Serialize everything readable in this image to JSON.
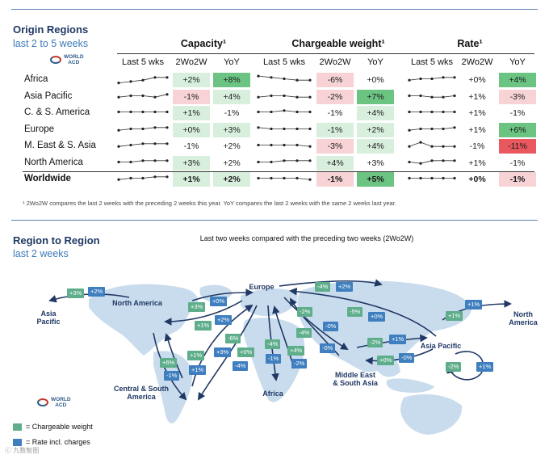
{
  "top": {
    "title": "Origin Regions",
    "subtitle": "last 2 to 5 weeks",
    "logo": {
      "line1": "WORLD",
      "line2": "ACD"
    },
    "groups": [
      "Capacity¹",
      "Chargeable weight¹",
      "Rate¹"
    ],
    "col_headers": [
      "Last 5 wks",
      "2Wo2W",
      "YoY"
    ]
  },
  "colors": {
    "green_strong": "#6cc483",
    "green_light": "#d8efdd",
    "red_strong": "#e8585e",
    "red_light": "#f7d3d5",
    "neutral": "#ffffff",
    "map": "#c9dced",
    "arrow": "#1f3864",
    "badge_green": "#5fae8b",
    "badge_blue": "#3f7fbf"
  },
  "chart_data": [
    {
      "type": "table",
      "title": "Origin Regions — last 2 to 5 weeks",
      "columns": [
        "Region",
        "Capacity Last 5 wks",
        "Capacity 2Wo2W",
        "Capacity YoY",
        "Chargeable weight Last 5 wks",
        "Chargeable weight 2Wo2W",
        "Chargeable weight YoY",
        "Rate Last 5 wks",
        "Rate 2Wo2W",
        "Rate YoY"
      ],
      "rows": [
        {
          "region": "Africa",
          "bold": false,
          "spark": [
            [
              2,
              3,
              4,
              6,
              6
            ],
            [
              7,
              6,
              5,
              4,
              4
            ],
            [
              4,
              5,
              5,
              6,
              6
            ]
          ],
          "values": [
            "+2%",
            "+8%",
            "-6%",
            "+0%",
            "+0%",
            "+4%"
          ],
          "shade": [
            "gl",
            "gs",
            "rl",
            "n",
            "n",
            "gs"
          ]
        },
        {
          "region": "Asia Pacific",
          "bold": false,
          "spark": [
            [
              4,
              5,
              5,
              4,
              6
            ],
            [
              4,
              5,
              5,
              4,
              4
            ],
            [
              5,
              5,
              4,
              4,
              5
            ]
          ],
          "values": [
            "-1%",
            "+4%",
            "-2%",
            "+7%",
            "+1%",
            "-3%"
          ],
          "shade": [
            "rl",
            "gl",
            "rl",
            "gs",
            "n",
            "rl"
          ]
        },
        {
          "region": "C. & S. America",
          "bold": false,
          "spark": [
            [
              5,
              5,
              5,
              5,
              5
            ],
            [
              5,
              5,
              6,
              5,
              5
            ],
            [
              5,
              5,
              5,
              5,
              5
            ]
          ],
          "values": [
            "+1%",
            "-1%",
            "-1%",
            "+4%",
            "+1%",
            "-1%"
          ],
          "shade": [
            "gl",
            "n",
            "n",
            "gl",
            "n",
            "n"
          ]
        },
        {
          "region": "Europe",
          "bold": false,
          "spark": [
            [
              4,
              5,
              5,
              6,
              6
            ],
            [
              6,
              5,
              5,
              5,
              5
            ],
            [
              4,
              5,
              5,
              5,
              6
            ]
          ],
          "values": [
            "+0%",
            "+3%",
            "-1%",
            "+2%",
            "+1%",
            "+6%"
          ],
          "shade": [
            "gl",
            "gl",
            "gl",
            "gl",
            "n",
            "gs"
          ]
        },
        {
          "region": "M. East & S. Asia",
          "bold": false,
          "spark": [
            [
              4,
              5,
              6,
              6,
              6
            ],
            [
              5,
              5,
              5,
              5,
              4
            ],
            [
              4,
              7,
              4,
              4,
              4
            ]
          ],
          "values": [
            "-1%",
            "+2%",
            "-3%",
            "+4%",
            "-1%",
            "-11%"
          ],
          "shade": [
            "n",
            "n",
            "rl",
            "gl",
            "n",
            "rs"
          ]
        },
        {
          "region": "North America",
          "bold": false,
          "spark": [
            [
              5,
              5,
              6,
              6,
              6
            ],
            [
              5,
              5,
              6,
              6,
              6
            ],
            [
              5,
              4,
              6,
              6,
              6
            ]
          ],
          "values": [
            "+3%",
            "+2%",
            "+4%",
            "+3%",
            "+1%",
            "-1%"
          ],
          "shade": [
            "gl",
            "n",
            "gl",
            "n",
            "n",
            "n"
          ]
        },
        {
          "region": "Worldwide",
          "bold": true,
          "spark": [
            [
              4,
              5,
              5,
              6,
              6
            ],
            [
              5,
              5,
              5,
              5,
              4
            ],
            [
              5,
              5,
              5,
              5,
              5
            ]
          ],
          "values": [
            "+1%",
            "+2%",
            "-1%",
            "+5%",
            "+0%",
            "-1%"
          ],
          "shade": [
            "gl",
            "gl",
            "rl",
            "gs",
            "n",
            "rl"
          ]
        }
      ]
    },
    {
      "type": "flow-map",
      "title": "Region to Region — last 2 weeks",
      "subtitle": "Last two weeks compared with the preceding two weeks (2Wo2W)",
      "regions": [
        "Asia Pacific",
        "North America",
        "Europe",
        "Central & South America",
        "Africa",
        "Middle East & South Asia"
      ],
      "flows": [
        {
          "from": "North America",
          "to": "Asia Pacific",
          "chargeable_weight": "+3%",
          "rate": "+2%"
        },
        {
          "from": "North America",
          "to": "Europe",
          "chargeable_weight": "+3%",
          "rate": "+0%"
        },
        {
          "from": "Europe",
          "to": "North America",
          "chargeable_weight": "+1%",
          "rate": "+2%"
        },
        {
          "from": "Europe",
          "to": "Asia Pacific",
          "chargeable_weight": "-4%",
          "rate": "+2%"
        },
        {
          "from": "Asia Pacific",
          "to": "Europe",
          "chargeable_weight": "-5%",
          "rate": "+0%"
        },
        {
          "from": "Asia Pacific",
          "to": "North America",
          "chargeable_weight": "+1%",
          "rate": "+1%"
        },
        {
          "from": "Europe",
          "to": "Middle East & South Asia",
          "chargeable_weight": "-2%",
          "rate": "-0%"
        },
        {
          "from": "Middle East & South Asia",
          "to": "Europe",
          "chargeable_weight": "-4%",
          "rate": "-0%"
        },
        {
          "from": "Middle East & South Asia",
          "to": "Asia Pacific",
          "chargeable_weight": "-2%",
          "rate": "+1%"
        },
        {
          "from": "Asia Pacific",
          "to": "Middle East & South Asia",
          "chargeable_weight": "+0%",
          "rate": "-0%"
        },
        {
          "from": "Asia Pacific",
          "to": "Asia Pacific",
          "chargeable_weight": "-2%",
          "rate": "+1%"
        },
        {
          "from": "Central & South America",
          "to": "Europe",
          "chargeable_weight": "-6%",
          "rate": "+3%"
        },
        {
          "from": "Central & South America",
          "to": "North America",
          "chargeable_weight": "+1%",
          "rate": "+1%"
        },
        {
          "from": "North America",
          "to": "Central & South America",
          "chargeable_weight": "+6%",
          "rate": "-1%"
        },
        {
          "from": "Europe",
          "to": "Central & South America",
          "chargeable_weight": "+0%",
          "rate": "-4%"
        },
        {
          "from": "Europe",
          "to": "Africa",
          "chargeable_weight": "-4%",
          "rate": "-1%"
        },
        {
          "from": "Africa",
          "to": "Europe",
          "chargeable_weight": "+4%",
          "rate": "-2%"
        }
      ]
    }
  ],
  "footnote": "¹ 2Wo2W compares the last 2 weeks with the preceding 2 weeks this year. YoY compares the last 2 weeks with the same 2 weeks last year.",
  "map": {
    "title": "Region to Region",
    "subtitle": "last 2 weeks",
    "caption": "Last two weeks compared with the preceding two weeks (2Wo2W)",
    "labels": {
      "asia_pacific_w": [
        "Asia",
        "Pacific"
      ],
      "north_america": [
        "North America"
      ],
      "europe": [
        "Europe"
      ],
      "central_south_america": [
        "Central & South",
        "America"
      ],
      "africa": [
        "Africa"
      ],
      "middle_east_south_asia": [
        "Middle East",
        "& South Asia"
      ],
      "asia_pacific_e": [
        "Asia Pacific"
      ],
      "north_america_e": [
        "North",
        "America"
      ]
    },
    "legend": {
      "green": "= Chargeable weight",
      "blue": "= Rate incl. charges"
    },
    "watermark": "ⓒ 九数智图"
  }
}
